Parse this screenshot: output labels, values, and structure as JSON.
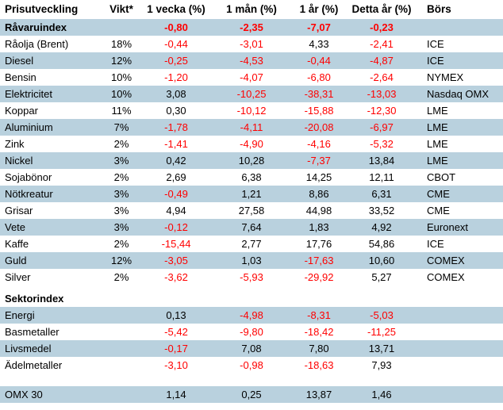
{
  "colors": {
    "stripe_row": "#b9d1de",
    "negative_value": "#ff0000",
    "positive_value": "#000000",
    "background": "#ffffff"
  },
  "chart_data": {
    "type": "table",
    "title": "Prisutveckling",
    "columns": [
      "Prisutveckling",
      "Vikt*",
      "1 vecka (%)",
      "1 mån (%)",
      "1 år (%)",
      "Detta år (%)",
      "Börs"
    ],
    "rows": [
      {
        "cells": [
          "Råvaruindex",
          "",
          "-0,80",
          "-2,35",
          "-7,07",
          "-0,23",
          ""
        ],
        "stripe": true,
        "bold": true
      },
      {
        "cells": [
          "Råolja (Brent)",
          "18%",
          "-0,44",
          "-3,01",
          "4,33",
          "-2,41",
          "ICE"
        ],
        "stripe": false
      },
      {
        "cells": [
          "Diesel",
          "12%",
          "-0,25",
          "-4,53",
          "-0,44",
          "-4,87",
          "ICE"
        ],
        "stripe": true
      },
      {
        "cells": [
          "Bensin",
          "10%",
          "-1,20",
          "-4,07",
          "-6,80",
          "-2,64",
          "NYMEX"
        ],
        "stripe": false
      },
      {
        "cells": [
          "Elektricitet",
          "10%",
          "3,08",
          "-10,25",
          "-38,31",
          "-13,03",
          "Nasdaq OMX"
        ],
        "stripe": true
      },
      {
        "cells": [
          "Koppar",
          "11%",
          "0,30",
          "-10,12",
          "-15,88",
          "-12,30",
          "LME"
        ],
        "stripe": false
      },
      {
        "cells": [
          "Aluminium",
          "7%",
          "-1,78",
          "-4,11",
          "-20,08",
          "-6,97",
          "LME"
        ],
        "stripe": true
      },
      {
        "cells": [
          "Zink",
          "2%",
          "-1,41",
          "-4,90",
          "-4,16",
          "-5,32",
          "LME"
        ],
        "stripe": false
      },
      {
        "cells": [
          "Nickel",
          "3%",
          "0,42",
          "10,28",
          "-7,37",
          "13,84",
          "LME"
        ],
        "stripe": true
      },
      {
        "cells": [
          "Sojabönor",
          "2%",
          "2,69",
          "6,38",
          "14,25",
          "12,11",
          "CBOT"
        ],
        "stripe": false
      },
      {
        "cells": [
          "Nötkreatur",
          "3%",
          "-0,49",
          "1,21",
          "8,86",
          "6,31",
          "CME"
        ],
        "stripe": true
      },
      {
        "cells": [
          "Grisar",
          "3%",
          "4,94",
          "27,58",
          "44,98",
          "33,52",
          "CME"
        ],
        "stripe": false
      },
      {
        "cells": [
          "Vete",
          "3%",
          "-0,12",
          "7,64",
          "1,83",
          "4,92",
          "Euronext"
        ],
        "stripe": true
      },
      {
        "cells": [
          "Kaffe",
          "2%",
          "-15,44",
          "2,77",
          "17,76",
          "54,86",
          "ICE"
        ],
        "stripe": false
      },
      {
        "cells": [
          "Guld",
          "12%",
          "-3,05",
          "1,03",
          "-17,63",
          "10,60",
          "COMEX"
        ],
        "stripe": true
      },
      {
        "cells": [
          "Silver",
          "2%",
          "-3,62",
          "-5,93",
          "-29,92",
          "5,27",
          "COMEX"
        ],
        "stripe": false
      },
      {
        "spacer": true,
        "height": 6
      },
      {
        "cells": [
          "Sektorindex",
          "",
          "",
          "",
          "",
          "",
          ""
        ],
        "stripe": false,
        "bold": true
      },
      {
        "cells": [
          "Energi",
          "",
          "0,13",
          "-4,98",
          "-8,31",
          "-5,03",
          ""
        ],
        "stripe": true
      },
      {
        "cells": [
          "Basmetaller",
          "",
          "-5,42",
          "-9,80",
          "-18,42",
          "-11,25",
          ""
        ],
        "stripe": false
      },
      {
        "cells": [
          "Livsmedel",
          "",
          "-0,17",
          "7,08",
          "7,80",
          "13,71",
          ""
        ],
        "stripe": true
      },
      {
        "cells": [
          "Ädelmetaller",
          "",
          "-3,10",
          "-0,98",
          "-18,63",
          "7,93",
          ""
        ],
        "stripe": false
      },
      {
        "spacer": true,
        "height": 16
      },
      {
        "cells": [
          "OMX 30",
          "",
          "1,14",
          "0,25",
          "13,87",
          "1,46",
          ""
        ],
        "stripe": true
      }
    ]
  }
}
